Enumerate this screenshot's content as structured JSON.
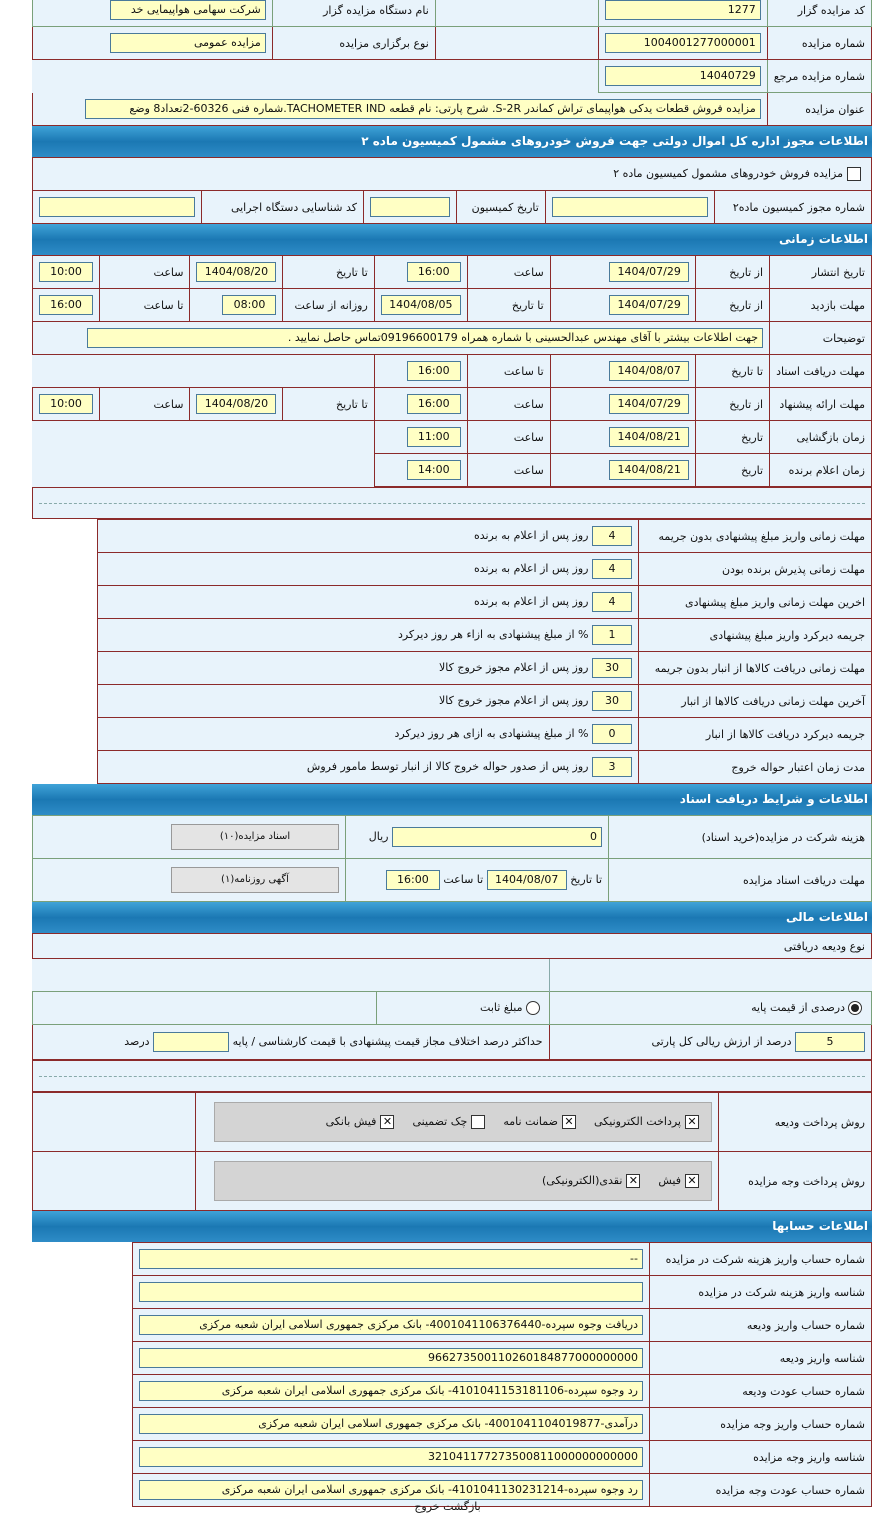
{
  "general": {
    "code_label": "کد مزایده گزار",
    "code": "1277",
    "org_label": "نام دستگاه مزایده گزار",
    "org": "شرکت سهامی هواپیمایی خد",
    "number_label": "شماره مزایده",
    "number": "1004001277000001",
    "type_label": "نوع برگزاری مزایده",
    "type": "مزایده عمومی",
    "ref_label": "شماره مزایده مرجع",
    "ref": "14040729",
    "title_label": "عنوان مزایده",
    "title": "مزایده  فروش قطعات یدکی هواپیمای تراش کماندر S-2R. شرح پارتی: نام قطعه TACHOMETER IND.شماره فنی 60326-2تعداد8 وضع"
  },
  "permit": {
    "header": "اطلاعات مجوز اداره کل اموال دولتی جهت فروش خودروهای مشمول کمیسیون ماده ۲",
    "checkbox_label": "مزایده فروش خودروهای مشمول کمیسیون ماده ۲",
    "checked": false,
    "permit_no_label": "شماره مجوز کمیسیون ماده۲",
    "permit_no": "",
    "date_label": "تاریخ کمیسیون",
    "date": "",
    "id_label": "کد شناسایی دستگاه اجرایی",
    "id": ""
  },
  "time": {
    "header": "اطلاعات زمانی",
    "publish_label": "تاریخ انتشار",
    "from_label": "از تاریخ",
    "publish_from": "1404/07/29",
    "time_label": "ساعت",
    "publish_from_time": "16:00",
    "to_date_label": "تا تاریخ",
    "publish_to": "1404/08/20",
    "publish_to_time": "10:00",
    "visit_label": "مهلت بازدید",
    "visit_from": "1404/07/29",
    "visit_to": "1404/08/05",
    "daily_from_label": "روزانه از ساعت",
    "daily_from": "08:00",
    "to_time_label": "تا ساعت",
    "daily_to": "16:00",
    "desc_label": "توضیحات",
    "desc": "جهت اطلاعات بیشتر با آقای مهندس عبدالحسینی با شماره همراه 09196600179تماس حاصل نمایید .",
    "docs_label": "مهلت دریافت اسناد",
    "docs_to": "1404/08/07",
    "docs_time": "16:00",
    "offer_label": "مهلت ارائه پیشنهاد",
    "offer_from": "1404/07/29",
    "offer_from_time": "16:00",
    "offer_to": "1404/08/20",
    "offer_to_time": "10:00",
    "open_label": "زمان بازگشایی",
    "date_label": "تاریخ",
    "open_date": "1404/08/21",
    "open_time": "11:00",
    "winner_label": "زمان اعلام برنده",
    "winner_date": "1404/08/21",
    "winner_time": "14:00"
  },
  "conditions": [
    {
      "label": "مهلت زمانی واریز مبلغ پیشنهادی بدون جریمه",
      "value": "4",
      "unit": "روز پس از اعلام به برنده"
    },
    {
      "label": "مهلت زمانی پذیرش برنده بودن",
      "value": "4",
      "unit": "روز پس از اعلام به برنده"
    },
    {
      "label": "اخرین مهلت زمانی واریز مبلغ پیشنهادی",
      "value": "4",
      "unit": "روز پس از اعلام به برنده"
    },
    {
      "label": "جریمه دیرکرد واریز مبلغ پیشنهادی",
      "value": "1",
      "unit": "% از مبلغ پیشنهادی به ازاء هر روز دیرکرد"
    },
    {
      "label": "مهلت زمانی دریافت کالاها از انبار بدون جریمه",
      "value": "30",
      "unit": "روز پس از اعلام مجوز خروج کالا"
    },
    {
      "label": "آخرین مهلت زمانی دریافت کالاها از انبار",
      "value": "30",
      "unit": "روز پس از اعلام مجوز خروج کالا"
    },
    {
      "label": "جریمه دیرکرد دریافت کالاها از انبار",
      "value": "0",
      "unit": "% از مبلغ پیشنهادی به ازای هر روز دیرکرد"
    },
    {
      "label": "مدت زمان اعتبار حواله خروج",
      "value": "3",
      "unit": "روز پس از صدور حواله خروج کالا از انبار توسط مامور فروش"
    }
  ],
  "docs": {
    "header": "اطلاعات و شرایط دریافت اسناد",
    "fee_label": "هزینه شرکت در مزایده(خرید اسناد)",
    "fee": "0",
    "currency": "ریال",
    "docs_button": "اسناد مزایده(۱۰)",
    "deadline_label": "مهلت دریافت اسناد مزایده",
    "to_date_label": "تا تاریخ",
    "deadline_date": "1404/08/07",
    "to_time_label": "تا ساعت",
    "deadline_time": "16:00",
    "ad_button": "آگهی روزنامه(۱)"
  },
  "finance": {
    "header": "اطلاعات مالی",
    "deposit_type_label": "نوع ودیعه دریافتی",
    "percent_option": "درصدی از قیمت پایه",
    "fixed_option": "مبلغ ثابت",
    "selected": "percent",
    "percent_value": "5",
    "percent_unit": "درصد از ارزش ریالی کل پارتی",
    "max_diff_label": "حداکثر درصد اختلاف مجاز قیمت پیشنهادی با قیمت کارشناسی / پایه",
    "max_diff": "",
    "max_diff_unit": "درصد",
    "deposit_method_label": "روش پرداخت ودیعه",
    "deposit_methods": [
      {
        "label": "پرداخت الکترونیکی",
        "checked": true
      },
      {
        "label": "ضمانت نامه",
        "checked": true
      },
      {
        "label": "چک تضمینی",
        "checked": false
      },
      {
        "label": "فیش بانکی",
        "checked": true
      }
    ],
    "payment_method_label": "روش پرداخت وجه مزایده",
    "payment_methods": [
      {
        "label": "فیش",
        "checked": true
      },
      {
        "label": "نقدی(الکترونیکی)",
        "checked": true
      }
    ]
  },
  "accounts": {
    "header": "اطلاعات حسابها",
    "rows": [
      {
        "label": "شماره حساب واریز هزینه شرکت در مزایده",
        "value": "--"
      },
      {
        "label": "شناسه واریز هزینه شرکت در مزایده",
        "value": ""
      },
      {
        "label": "شماره حساب واریز ودیعه",
        "value": "دریافت وجوه سپرده-4001041106376440- بانک مرکزی جمهوری اسلامی ایران شعبه مرکزی"
      },
      {
        "label": "شناسه واریز ودیعه",
        "value": "966273500110260184877000000000"
      },
      {
        "label": "شماره حساب عودت ودیعه",
        "value": "رد وجوه سپرده-4101041153181106- بانک مرکزی جمهوری اسلامی ایران شعبه مرکزی"
      },
      {
        "label": "شماره حساب واریز وجه مزایده",
        "value": "درآمدی-4001041104019877- بانک مرکزی جمهوری اسلامی ایران شعبه مرکزی"
      },
      {
        "label": "شناسه واریز وجه مزایده",
        "value": "321041177273500811000000000000"
      },
      {
        "label": "شماره حساب عودت وجه مزایده",
        "value": "رد وجوه سپرده-4101041130231214- بانک مرکزی جمهوری اسلامی ایران شعبه مرکزی"
      }
    ]
  },
  "footer": {
    "back": "بازگشت",
    "exit": "خروج"
  }
}
